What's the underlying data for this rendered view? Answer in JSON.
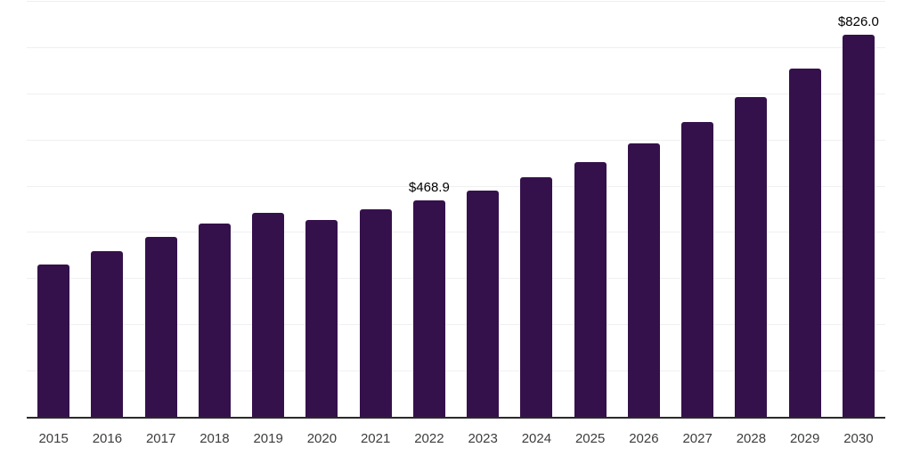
{
  "chart_data": {
    "type": "bar",
    "title": "",
    "xlabel": "",
    "ylabel": "",
    "categories": [
      "2015",
      "2016",
      "2017",
      "2018",
      "2019",
      "2020",
      "2021",
      "2022",
      "2023",
      "2024",
      "2025",
      "2026",
      "2027",
      "2028",
      "2029",
      "2030"
    ],
    "values": [
      330,
      358,
      389,
      418,
      441,
      426,
      450,
      468.9,
      489,
      518,
      552,
      592,
      638,
      692,
      753,
      826
    ],
    "annotations": [
      {
        "category": "2022",
        "text": "$468.9"
      },
      {
        "category": "2030",
        "text": "$826.0"
      }
    ],
    "ylim": [
      0,
      900
    ],
    "gridline_step": 100,
    "grid": true,
    "y_tick_labels_shown": false,
    "legend": "none"
  },
  "style": {
    "background": "#ffffff",
    "bar_color": "#35114b",
    "gridline_color": "#f0f0f0",
    "axis_line_color": "#2a2a2a",
    "tick_label_color": "#3d3d3d",
    "annotation_color": "#000000"
  }
}
